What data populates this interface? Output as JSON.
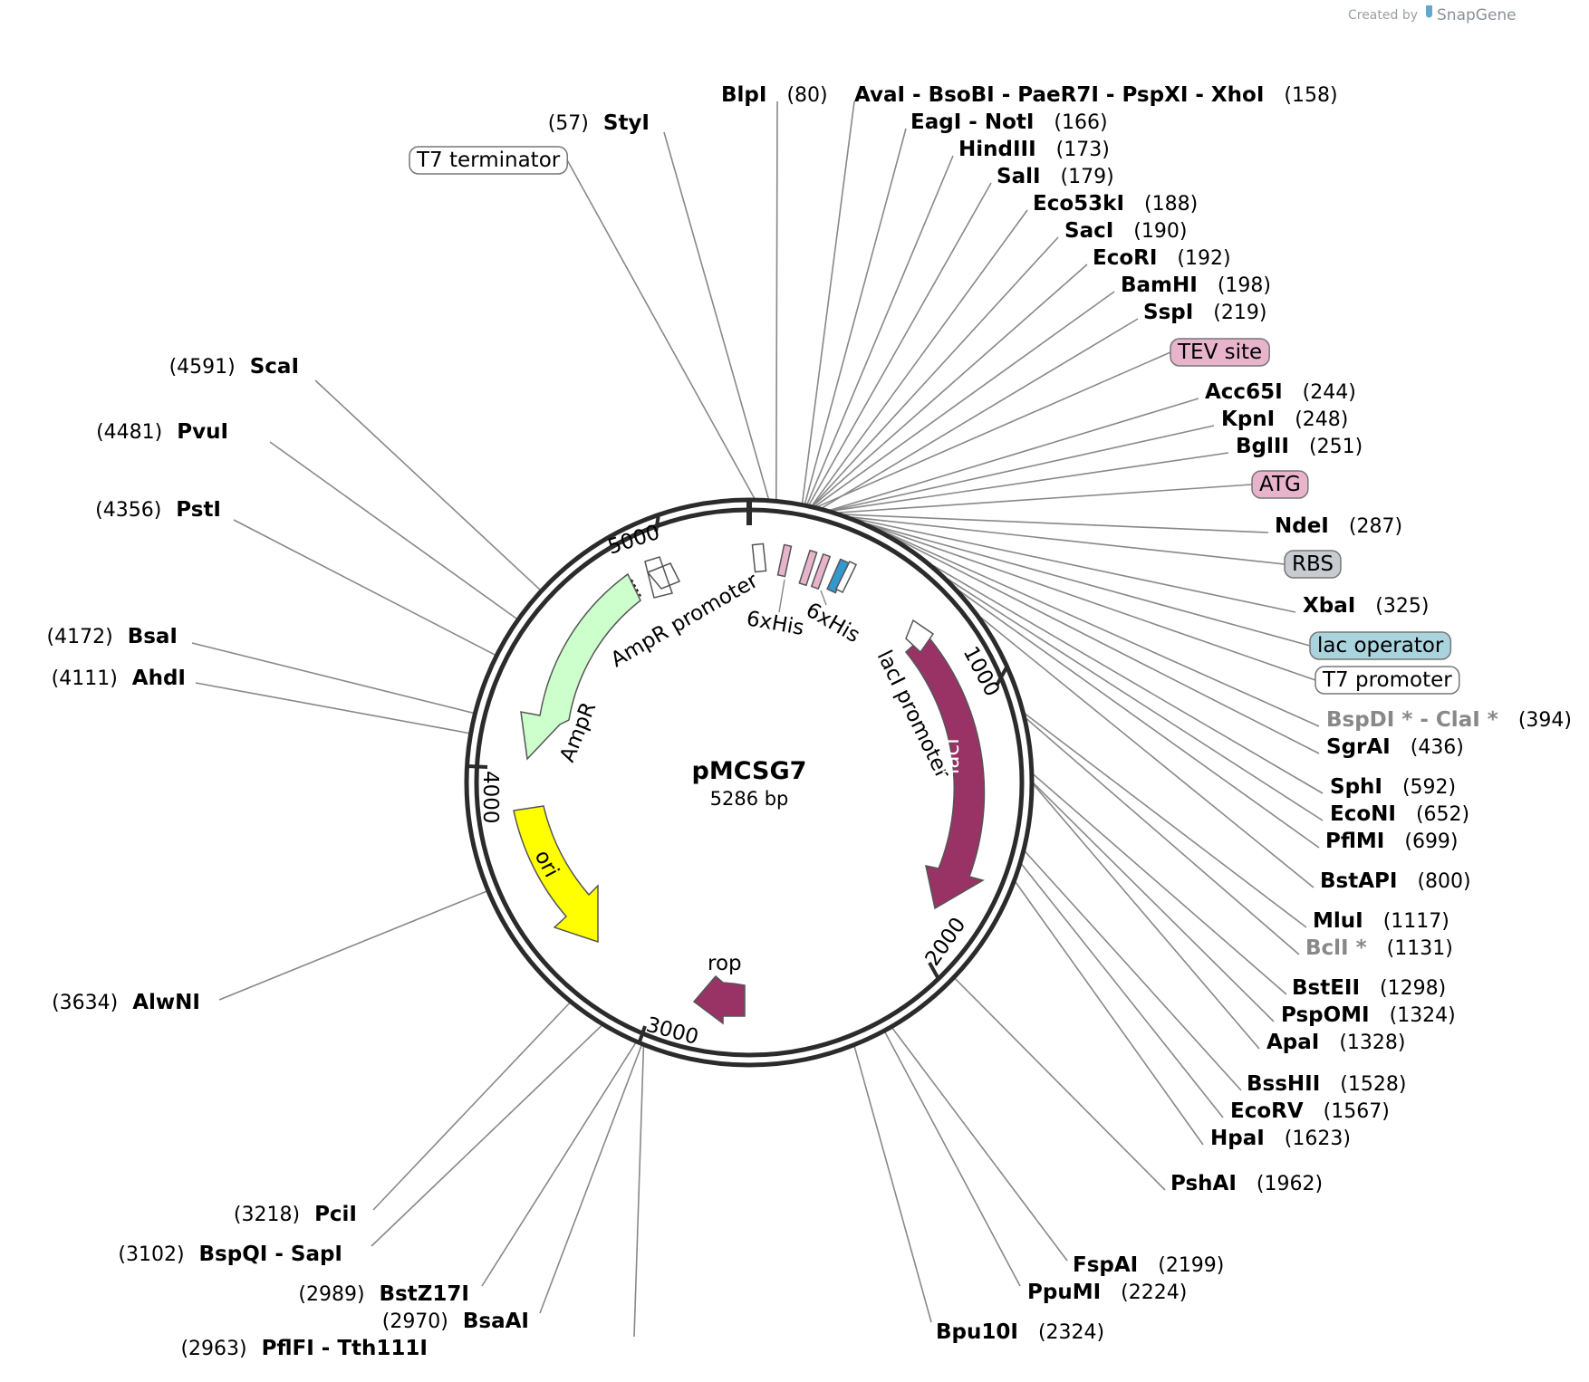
{
  "credit": {
    "prefix": "Created by",
    "brand": "SnapGene"
  },
  "plasmid": {
    "name": "pMCSG7",
    "size_label": "5286 bp",
    "length": 5286
  },
  "ticks": [
    "1000",
    "2000",
    "3000",
    "4000",
    "5000"
  ],
  "colors": {
    "backbone": "#2b2b2b",
    "ampr": "#ccffcc",
    "lacI": "#993366",
    "rop": "#993366",
    "ori": "#ffff00",
    "tev": "#e8b4cb",
    "atg": "#e8b4cb",
    "rbs": "#c8ccd0",
    "lac_operator": "#a9d3dd",
    "lead": "#888888"
  },
  "features": {
    "ampr": "AmpR",
    "ampr_promoter": "AmpR promoter",
    "lacI": "lacI",
    "lacI_promoter": "lacI promoter",
    "ori": "ori",
    "rop": "rop",
    "his1": "6xHis",
    "his2": "6xHis"
  },
  "boxed_labels": [
    {
      "text": "T7 terminator",
      "fill": "#ffffff"
    },
    {
      "text": "TEV site",
      "fill": "#e8b4cb"
    },
    {
      "text": "ATG",
      "fill": "#e8b4cb"
    },
    {
      "text": "RBS",
      "fill": "#c8ccd0"
    },
    {
      "text": "lac operator",
      "fill": "#a9d3dd"
    },
    {
      "text": "T7 promoter",
      "fill": "#ffffff"
    }
  ],
  "sites": [
    {
      "name": "BlpI",
      "pos": "(80)"
    },
    {
      "name": "StyI",
      "pos": "(57)"
    },
    {
      "name": "AvaI - BsoBI - PaeR7I - PspXI - XhoI",
      "pos": "(158)"
    },
    {
      "name": "EagI - NotI",
      "pos": "(166)"
    },
    {
      "name": "HindIII",
      "pos": "(173)"
    },
    {
      "name": "SalI",
      "pos": "(179)"
    },
    {
      "name": "Eco53kI",
      "pos": "(188)"
    },
    {
      "name": "SacI",
      "pos": "(190)"
    },
    {
      "name": "EcoRI",
      "pos": "(192)"
    },
    {
      "name": "BamHI",
      "pos": "(198)"
    },
    {
      "name": "SspI",
      "pos": "(219)"
    },
    {
      "name": "Acc65I",
      "pos": "(244)"
    },
    {
      "name": "KpnI",
      "pos": "(248)"
    },
    {
      "name": "BglII",
      "pos": "(251)"
    },
    {
      "name": "NdeI",
      "pos": "(287)"
    },
    {
      "name": "XbaI",
      "pos": "(325)"
    },
    {
      "name": "BspDI * - ClaI *",
      "pos": "(394)"
    },
    {
      "name": "SgrAI",
      "pos": "(436)"
    },
    {
      "name": "SphI",
      "pos": "(592)"
    },
    {
      "name": "EcoNI",
      "pos": "(652)"
    },
    {
      "name": "PflMI",
      "pos": "(699)"
    },
    {
      "name": "BstAPI",
      "pos": "(800)"
    },
    {
      "name": "MluI",
      "pos": "(1117)"
    },
    {
      "name": "BclI *",
      "pos": "(1131)"
    },
    {
      "name": "BstEII",
      "pos": "(1298)"
    },
    {
      "name": "PspOMI",
      "pos": "(1324)"
    },
    {
      "name": "ApaI",
      "pos": "(1328)"
    },
    {
      "name": "BssHII",
      "pos": "(1528)"
    },
    {
      "name": "EcoRV",
      "pos": "(1567)"
    },
    {
      "name": "HpaI",
      "pos": "(1623)"
    },
    {
      "name": "PshAI",
      "pos": "(1962)"
    },
    {
      "name": "FspAI",
      "pos": "(2199)"
    },
    {
      "name": "PpuMI",
      "pos": "(2224)"
    },
    {
      "name": "Bpu10I",
      "pos": "(2324)"
    },
    {
      "name": "PflFI - Tth111I",
      "pos": "(2963)"
    },
    {
      "name": "BsaAI",
      "pos": "(2970)"
    },
    {
      "name": "BstZ17I",
      "pos": "(2989)"
    },
    {
      "name": "BspQI - SapI",
      "pos": "(3102)"
    },
    {
      "name": "PciI",
      "pos": "(3218)"
    },
    {
      "name": "AlwNI",
      "pos": "(3634)"
    },
    {
      "name": "AhdI",
      "pos": "(4111)"
    },
    {
      "name": "BsaI",
      "pos": "(4172)"
    },
    {
      "name": "PstI",
      "pos": "(4356)"
    },
    {
      "name": "PvuI",
      "pos": "(4481)"
    },
    {
      "name": "ScaI",
      "pos": "(4591)"
    }
  ]
}
